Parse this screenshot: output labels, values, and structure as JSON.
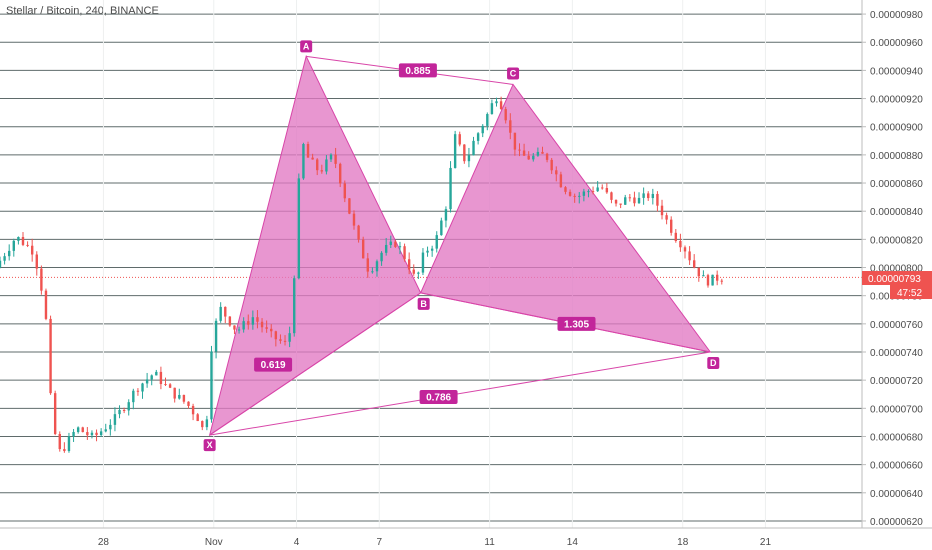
{
  "chart_title": "Stellar / Bitcoin, 240, BINANCE",
  "colors": {
    "up": "#26a69a",
    "down": "#ef5350",
    "pattern_fill": "#e179c3",
    "pattern_stroke": "#d845a8",
    "label_bg": "#c2259a",
    "grid": "#5f6b6b",
    "price_badge": "#ef5350"
  },
  "price_badge": {
    "price": "0.00000793",
    "countdown": "47:52"
  },
  "chart_data": {
    "type": "candlestick",
    "title": "Stellar / Bitcoin, 240, BINANCE",
    "ylim": [
      6.15e-06,
      9.9e-06
    ],
    "y_ticks": [
      "0.00000620",
      "0.00000640",
      "0.00000660",
      "0.00000680",
      "0.00000700",
      "0.00000720",
      "0.00000740",
      "0.00000760",
      "0.00000780",
      "0.00000800",
      "0.00000820",
      "0.00000840",
      "0.00000860",
      "0.00000880",
      "0.00000900",
      "0.00000920",
      "0.00000940",
      "0.00000960",
      "0.00000980"
    ],
    "x_ticks": [
      "28",
      "Nov",
      "4",
      "7",
      "11",
      "14",
      "18",
      "21"
    ],
    "x_tick_days": [
      28,
      32,
      35,
      38,
      42,
      45,
      49,
      52
    ],
    "x_range_days": [
      24.25,
      55.5
    ],
    "current_price": 7.93e-06,
    "gridlines": true,
    "harmonic_pattern": {
      "points": [
        {
          "name": "X",
          "day": 31.85,
          "price": 6.81e-06
        },
        {
          "name": "A",
          "day": 35.35,
          "price": 9.5e-06
        },
        {
          "name": "B",
          "day": 39.5,
          "price": 7.82e-06
        },
        {
          "name": "C",
          "day": 42.85,
          "price": 9.3e-06
        },
        {
          "name": "D",
          "day": 50.0,
          "price": 7.4e-06
        }
      ],
      "ratios": [
        {
          "value": "0.619",
          "day": 34.15,
          "price": 7.31e-06
        },
        {
          "value": "0.885",
          "day": 39.4,
          "price": 9.4e-06
        },
        {
          "value": "1.305",
          "day": 45.15,
          "price": 7.6e-06
        },
        {
          "value": "0.786",
          "day": 40.15,
          "price": 7.08e-06
        }
      ]
    },
    "price_path_days": [
      24.25,
      25.0,
      25.6,
      25.85,
      26.1,
      26.3,
      26.6,
      27.2,
      27.8,
      28.6,
      29.4,
      30.0,
      30.6,
      31.2,
      31.6,
      31.85,
      32.0,
      32.1,
      32.4,
      33.0,
      33.6,
      34.2,
      34.8,
      35.0,
      35.2,
      35.35,
      35.6,
      36.0,
      36.5,
      37.0,
      37.4,
      37.8,
      38.3,
      38.8,
      39.2,
      39.5,
      39.8,
      40.2,
      40.6,
      40.9,
      41.3,
      41.6,
      42.0,
      42.4,
      42.7,
      42.85,
      43.2,
      43.6,
      44.2,
      44.8,
      45.3,
      45.8,
      46.2,
      46.7,
      47.2,
      47.6,
      48.0,
      48.4,
      48.9,
      49.2,
      49.6,
      50.0,
      50.5
    ],
    "price_path_prices": [
      8e-06,
      8.22e-06,
      8.12e-06,
      7.95e-06,
      7.6e-06,
      6.9e-06,
      6.68e-06,
      6.86e-06,
      6.79e-06,
      6.93e-06,
      7.15e-06,
      7.25e-06,
      7.12e-06,
      7.03e-06,
      6.93e-06,
      6.81e-06,
      7.12e-06,
      7.5e-06,
      7.71e-06,
      7.55e-06,
      7.65e-06,
      7.52e-06,
      7.45e-06,
      7.6e-06,
      8.45e-06,
      8.9e-06,
      8.77e-06,
      8.68e-06,
      8.8e-06,
      8.45e-06,
      8.18e-06,
      7.97e-06,
      8.12e-06,
      8.18e-06,
      8.03e-06,
      7.9e-06,
      8.11e-06,
      8.18e-06,
      8.45e-06,
      8.93e-06,
      8.75e-06,
      8.9e-06,
      9.05e-06,
      9.22e-06,
      9.12e-06,
      8.98e-06,
      8.8e-06,
      8.78e-06,
      8.8e-06,
      8.58e-06,
      8.5e-06,
      8.55e-06,
      8.58e-06,
      8.43e-06,
      8.5e-06,
      8.48e-06,
      8.52e-06,
      8.4e-06,
      8.22e-06,
      8.15e-06,
      8e-06,
      7.9e-06,
      7.93e-06
    ]
  }
}
